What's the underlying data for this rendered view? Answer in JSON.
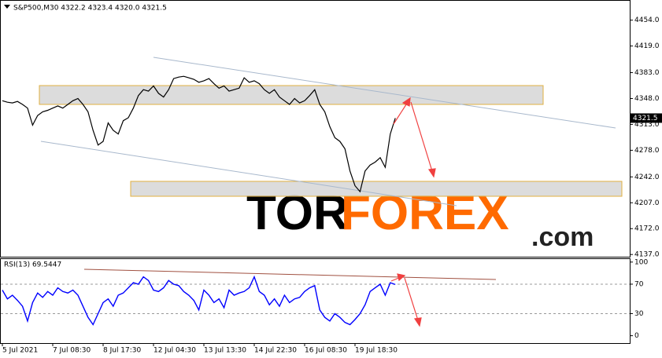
{
  "chart_data": [
    {
      "type": "line",
      "title": "S&P500,M30  4322.2 4323.4 4320.0 4321.5",
      "color": "#000000",
      "categories": [
        "5 Jul 2021",
        null,
        null,
        null,
        null,
        null,
        null,
        null,
        null,
        null,
        "7 Jul 08:30",
        null,
        null,
        null,
        null,
        null,
        null,
        null,
        null,
        null,
        "8 Jul 17:30",
        null,
        null,
        null,
        null,
        null,
        null,
        null,
        null,
        null,
        "12 Jul 04:30",
        null,
        null,
        null,
        null,
        null,
        null,
        null,
        null,
        null,
        "13 Jul 13:30",
        null,
        null,
        null,
        null,
        null,
        null,
        null,
        null,
        null,
        "14 Jul 22:30",
        null,
        null,
        null,
        null,
        null,
        null,
        null,
        null,
        null,
        "16 Jul 08:30",
        null,
        null,
        null,
        null,
        null,
        null,
        null,
        null,
        null,
        "19 Jul 18:30",
        null,
        null,
        null,
        null,
        null,
        null,
        null,
        null
      ],
      "values": [
        4345,
        4343,
        4342,
        4344,
        4340,
        4335,
        4312,
        4325,
        4330,
        4332,
        4335,
        4338,
        4335,
        4340,
        4345,
        4348,
        4340,
        4330,
        4305,
        4285,
        4290,
        4315,
        4305,
        4300,
        4318,
        4322,
        4335,
        4352,
        4360,
        4358,
        4365,
        4355,
        4350,
        4360,
        4375,
        4377,
        4378,
        4376,
        4374,
        4370,
        4372,
        4375,
        4368,
        4362,
        4365,
        4358,
        4360,
        4362,
        4376,
        4370,
        4372,
        4368,
        4360,
        4355,
        4360,
        4350,
        4345,
        4340,
        4348,
        4342,
        4345,
        4352,
        4360,
        4340,
        4330,
        4310,
        4295,
        4290,
        4280,
        4250,
        4230,
        4222,
        4250,
        4258,
        4262,
        4268,
        4255,
        4300,
        4321.5
      ],
      "ylim": [
        4134,
        4477
      ],
      "yticks": [
        {
          "value": 4454,
          "label": "4454.0"
        },
        {
          "value": 4419,
          "label": "4419.0"
        },
        {
          "value": 4383,
          "label": "4383.0"
        },
        {
          "value": 4348,
          "label": "4348.0"
        },
        {
          "value": 4313,
          "label": "4313.0"
        },
        {
          "value": 4278,
          "label": "4278.0"
        },
        {
          "value": 4242,
          "label": "4242.0"
        },
        {
          "value": 4207,
          "label": "4207.0"
        },
        {
          "value": 4172,
          "label": "4172.0"
        },
        {
          "value": 4137,
          "label": "4137.0"
        }
      ],
      "current_price": 4321.5,
      "watermark": [
        "TOR",
        "FOREX",
        ".com"
      ]
    },
    {
      "type": "line",
      "title": "RSI(13) 69.5447",
      "color": "#0000ff",
      "values": [
        62,
        50,
        55,
        48,
        40,
        20,
        45,
        58,
        52,
        60,
        55,
        65,
        60,
        58,
        62,
        55,
        40,
        25,
        15,
        30,
        45,
        50,
        40,
        55,
        58,
        65,
        72,
        70,
        80,
        75,
        62,
        60,
        65,
        75,
        70,
        68,
        60,
        55,
        48,
        35,
        62,
        55,
        45,
        50,
        38,
        62,
        55,
        58,
        60,
        65,
        80,
        60,
        55,
        42,
        50,
        40,
        55,
        45,
        50,
        52,
        60,
        65,
        68,
        35,
        25,
        20,
        30,
        25,
        18,
        15,
        22,
        30,
        42,
        60,
        65,
        70,
        55,
        72,
        69.5447
      ],
      "ylim": [
        -10,
        103
      ],
      "yticks": [
        100,
        70,
        30,
        0
      ],
      "levels": [
        70,
        30
      ]
    }
  ]
}
